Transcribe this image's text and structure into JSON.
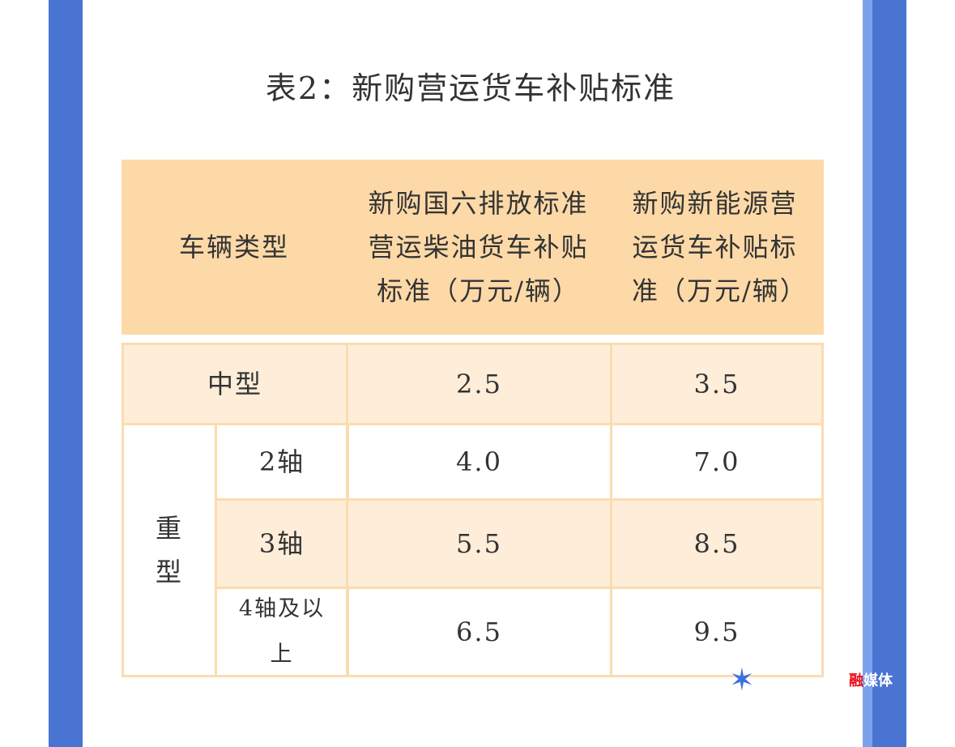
{
  "title": "表2：新购营运货车补贴标准",
  "header": {
    "col1": "车辆类型",
    "col2": "新购国六排放标准营运柴油货车补贴标准（万元/辆）",
    "col3": "新购新能源营运货车补贴标准（万元/辆）"
  },
  "rows": {
    "medium": {
      "label": "中型",
      "v1": "2.5",
      "v2": "3.5"
    },
    "heavy_label": "重型",
    "heavy": [
      {
        "axle": "2轴",
        "v1": "4.0",
        "v2": "7.0"
      },
      {
        "axle": "3轴",
        "v1": "5.5",
        "v2": "8.5"
      },
      {
        "axle": "4轴及以上",
        "v1": "6.5",
        "v2": "9.5"
      }
    ]
  },
  "watermark": {
    "text": "融媒体",
    "color_red": "#e8101a"
  },
  "colors": {
    "bar_blue": "#4a74d2",
    "bar_light": "#7aa2ec",
    "header_bg": "#fdd9a8",
    "row_light": "#feedd8",
    "border": "#fbdcb0"
  }
}
